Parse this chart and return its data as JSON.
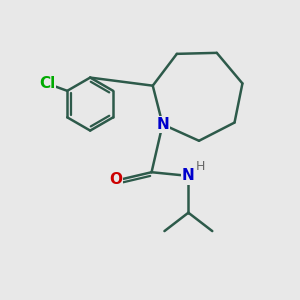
{
  "bg_color": "#e8e8e8",
  "line_color": "#2d5a4a",
  "N_color": "#0000cc",
  "O_color": "#cc0000",
  "Cl_color": "#00aa00",
  "H_color": "#666666",
  "line_width": 1.8,
  "font_size": 11,
  "fig_size": [
    3.0,
    3.0
  ],
  "dpi": 100,
  "xlim": [
    1,
    9
  ],
  "ylim": [
    1,
    9
  ]
}
